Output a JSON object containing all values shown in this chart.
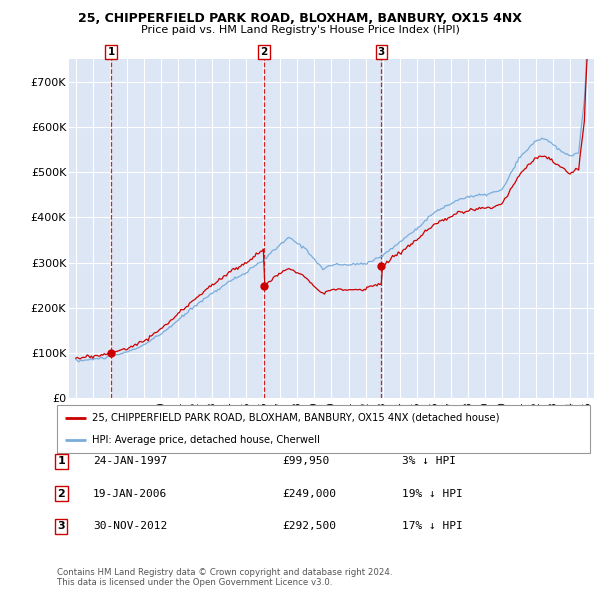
{
  "title": "25, CHIPPERFIELD PARK ROAD, BLOXHAM, BANBURY, OX15 4NX",
  "subtitle": "Price paid vs. HM Land Registry's House Price Index (HPI)",
  "ylim": [
    0,
    750000
  ],
  "yticks": [
    0,
    100000,
    200000,
    300000,
    400000,
    500000,
    600000,
    700000
  ],
  "ytick_labels": [
    "£0",
    "£100K",
    "£200K",
    "£300K",
    "£400K",
    "£500K",
    "£600K",
    "£700K"
  ],
  "bg_color": "#ffffff",
  "plot_bg_color": "#dce6f5",
  "grid_color": "#ffffff",
  "line_color_red": "#cc0000",
  "line_color_blue": "#7aaddb",
  "marker_color": "#cc0000",
  "sale_year_floats": [
    1997.07,
    2006.05,
    2012.92
  ],
  "sale_prices": [
    99950,
    249000,
    292500
  ],
  "sale_labels": [
    "1",
    "2",
    "3"
  ],
  "legend_line1": "25, CHIPPERFIELD PARK ROAD, BLOXHAM, BANBURY, OX15 4NX (detached house)",
  "legend_line2": "HPI: Average price, detached house, Cherwell",
  "table_rows": [
    [
      "1",
      "24-JAN-1997",
      "£99,950",
      "3% ↓ HPI"
    ],
    [
      "2",
      "19-JAN-2006",
      "£249,000",
      "19% ↓ HPI"
    ],
    [
      "3",
      "30-NOV-2012",
      "£292,500",
      "17% ↓ HPI"
    ]
  ],
  "footer": "Contains HM Land Registry data © Crown copyright and database right 2024.\nThis data is licensed under the Open Government Licence v3.0."
}
